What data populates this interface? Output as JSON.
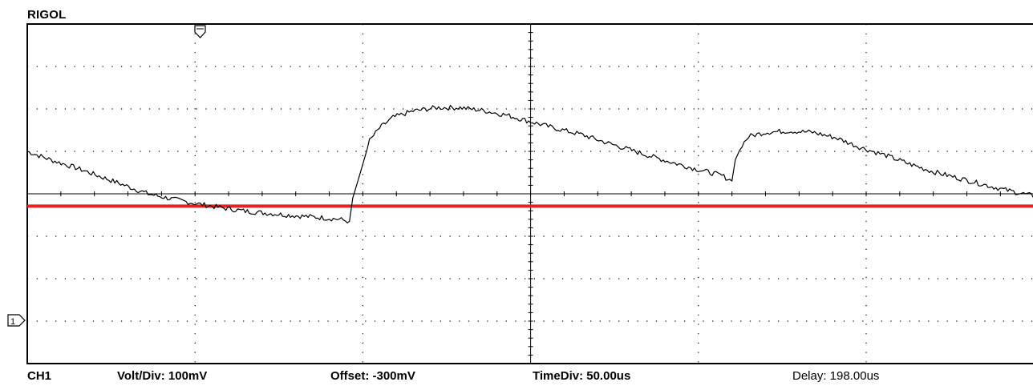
{
  "app": {
    "brand": "RIGOL"
  },
  "footer": {
    "channel": "CH1",
    "volt_div": "Volt/Div: 100mV",
    "offset": "Offset: -300mV",
    "time_div": "TimeDiv: 50.00us",
    "delay": "Delay: 198.00us"
  },
  "markers": {
    "channel_marker_label": "1"
  },
  "colors": {
    "trace": "#000000",
    "grid": "#000000",
    "reference_line": "#e8201f",
    "background": "#ffffff"
  },
  "chart_data": {
    "type": "line",
    "title": "",
    "xlabel": "",
    "ylabel": "",
    "x_unit": "us",
    "y_unit": "V",
    "xlim": [
      -127,
      473
    ],
    "ylim": [
      -0.3,
      0.5
    ],
    "grid": true,
    "reference_level": 0.071,
    "channel_marker_level": 0.0,
    "trigger_time": -27,
    "series": [
      {
        "values_x": [
          -127,
          -120,
          -112,
          -105,
          -98,
          -91,
          -84,
          -76,
          -69,
          -62,
          -55,
          -48,
          -41,
          -34,
          -31,
          -30,
          -27,
          -25,
          -22,
          -18,
          -12,
          -5,
          2,
          9,
          16,
          23,
          30,
          38,
          45,
          52,
          59,
          66,
          73,
          80,
          83,
          84,
          86,
          88,
          93,
          100,
          107,
          114,
          121,
          129,
          136,
          143,
          150,
          157,
          164,
          171,
          178,
          186,
          193,
          200,
          207,
          214,
          221,
          228,
          235,
          242,
          249,
          257,
          264,
          271,
          278,
          281,
          282,
          284,
          286,
          290,
          295,
          302,
          309,
          316,
          323,
          330,
          337,
          345,
          352,
          359,
          361,
          364,
          366,
          368,
          373,
          380,
          387,
          394,
          402,
          409,
          416,
          423,
          426,
          429,
          433,
          440,
          447,
          454,
          459,
          463,
          465,
          470,
          473
        ],
        "values_y": [
          0.2,
          0.18,
          0.16,
          0.14,
          0.12,
          0.1,
          0.088,
          0.076,
          0.067,
          0.059,
          0.054,
          0.049,
          0.045,
          0.04,
          0.035,
          0.09,
          0.17,
          0.225,
          0.255,
          0.28,
          0.295,
          0.303,
          0.303,
          0.296,
          0.285,
          0.27,
          0.255,
          0.24,
          0.222,
          0.205,
          0.188,
          0.172,
          0.157,
          0.143,
          0.13,
          0.18,
          0.215,
          0.235,
          0.245,
          0.248,
          0.245,
          0.232,
          0.21,
          0.19,
          0.17,
          0.152,
          0.138,
          0.124,
          0.11,
          0.098,
          0.086,
          0.076,
          0.067,
          0.06,
          0.055,
          0.051,
          0.048,
          0.046,
          0.045,
          0.044,
          0.043,
          0.042,
          0.041,
          0.04,
          0.038,
          0.1,
          0.17,
          0.235,
          0.275,
          0.295,
          0.303,
          0.305,
          0.3,
          0.292,
          0.28,
          0.265,
          0.245,
          0.222,
          0.2,
          0.185,
          0.18,
          0.166,
          0.155,
          0.168,
          0.172,
          0.17,
          0.167,
          0.16,
          0.148,
          0.16,
          0.164,
          0.165,
          0.162,
          0.145,
          0.165,
          0.17,
          0.168,
          0.16,
          0.152,
          0.148,
          0.16,
          0.175,
          0.18
        ]
      }
    ]
  }
}
